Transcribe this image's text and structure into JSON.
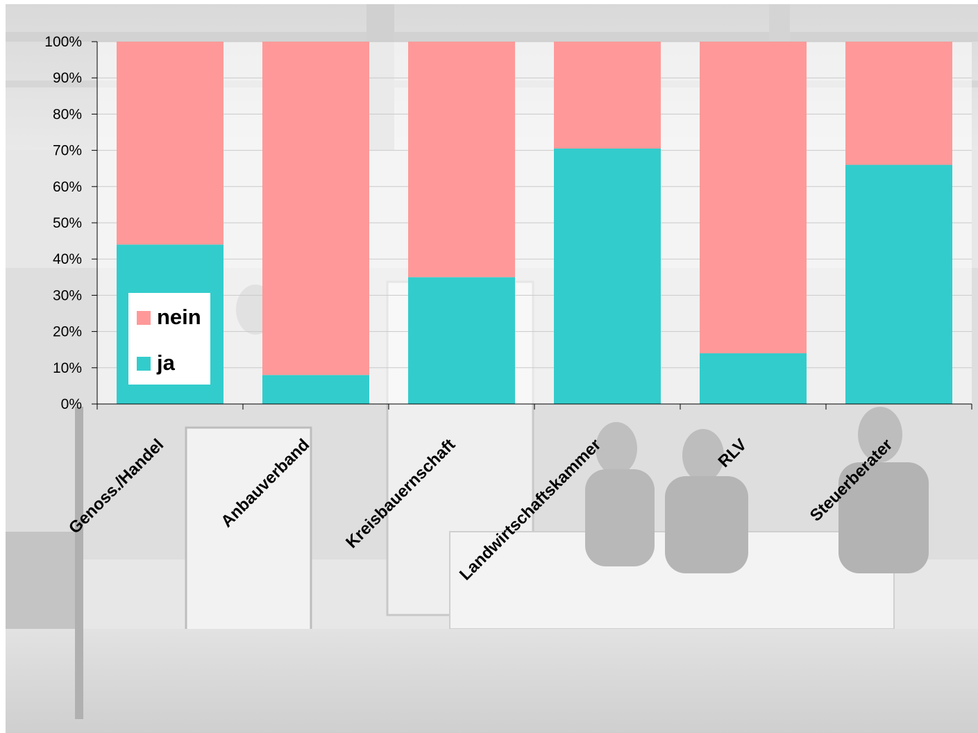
{
  "chart_data": {
    "type": "bar",
    "stacked": true,
    "percent_stacked": true,
    "categories": [
      "Genoss./Handel",
      "Anbauverband",
      "Kreisbauernschaft",
      "Landwirtschaftskammer",
      "RLV",
      "Steuerberater"
    ],
    "series": [
      {
        "name": "ja",
        "color": "#33CCCC",
        "values": [
          44,
          8,
          35,
          70.5,
          14,
          66
        ]
      },
      {
        "name": "nein",
        "color": "#FF9999",
        "values": [
          56,
          92,
          65,
          29.5,
          86,
          34
        ]
      }
    ],
    "ylim": [
      0,
      100
    ],
    "yticks": [
      "0%",
      "10%",
      "20%",
      "30%",
      "40%",
      "50%",
      "60%",
      "70%",
      "80%",
      "90%",
      "100%"
    ],
    "legend": {
      "position": "inside-left",
      "items": [
        "nein",
        "ja"
      ]
    },
    "grid": true,
    "background": "faded grayscale photograph of a panel discussion on a stage"
  }
}
